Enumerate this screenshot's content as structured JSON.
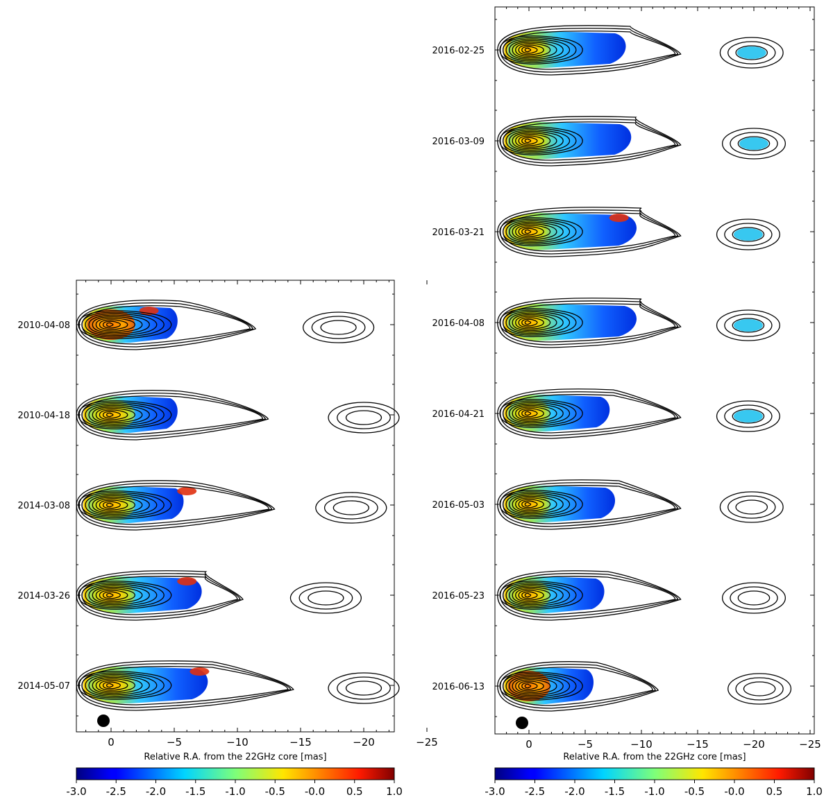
{
  "figure": {
    "panels": [
      {
        "id": "left",
        "epochs": [
          "2010-04-08",
          "2010-04-18",
          "2014-03-08",
          "2014-03-26",
          "2014-05-07"
        ],
        "xlabel": "Relative R.A. from the 22GHz core [mas]",
        "xticks": [
          "0",
          "−5",
          "−10",
          "−15",
          "−20",
          "−25"
        ]
      },
      {
        "id": "right",
        "epochs": [
          "2016-02-25",
          "2016-03-09",
          "2016-03-21",
          "2016-04-08",
          "2016-04-21",
          "2016-05-03",
          "2016-05-23",
          "2016-06-13"
        ],
        "xlabel": "Relative R.A. from the 22GHz core [mas]",
        "xticks": [
          "0",
          "−5",
          "−10",
          "−15",
          "−20",
          "−25"
        ]
      }
    ],
    "colorbar": {
      "ticks": [
        "-3.0",
        "-2.5",
        "-2.0",
        "-1.5",
        "-1.0",
        "-0.5",
        "-0.0",
        "0.5",
        "1.0"
      ],
      "range": [
        -3.0,
        1.0
      ],
      "colormap": "jet"
    }
  }
}
